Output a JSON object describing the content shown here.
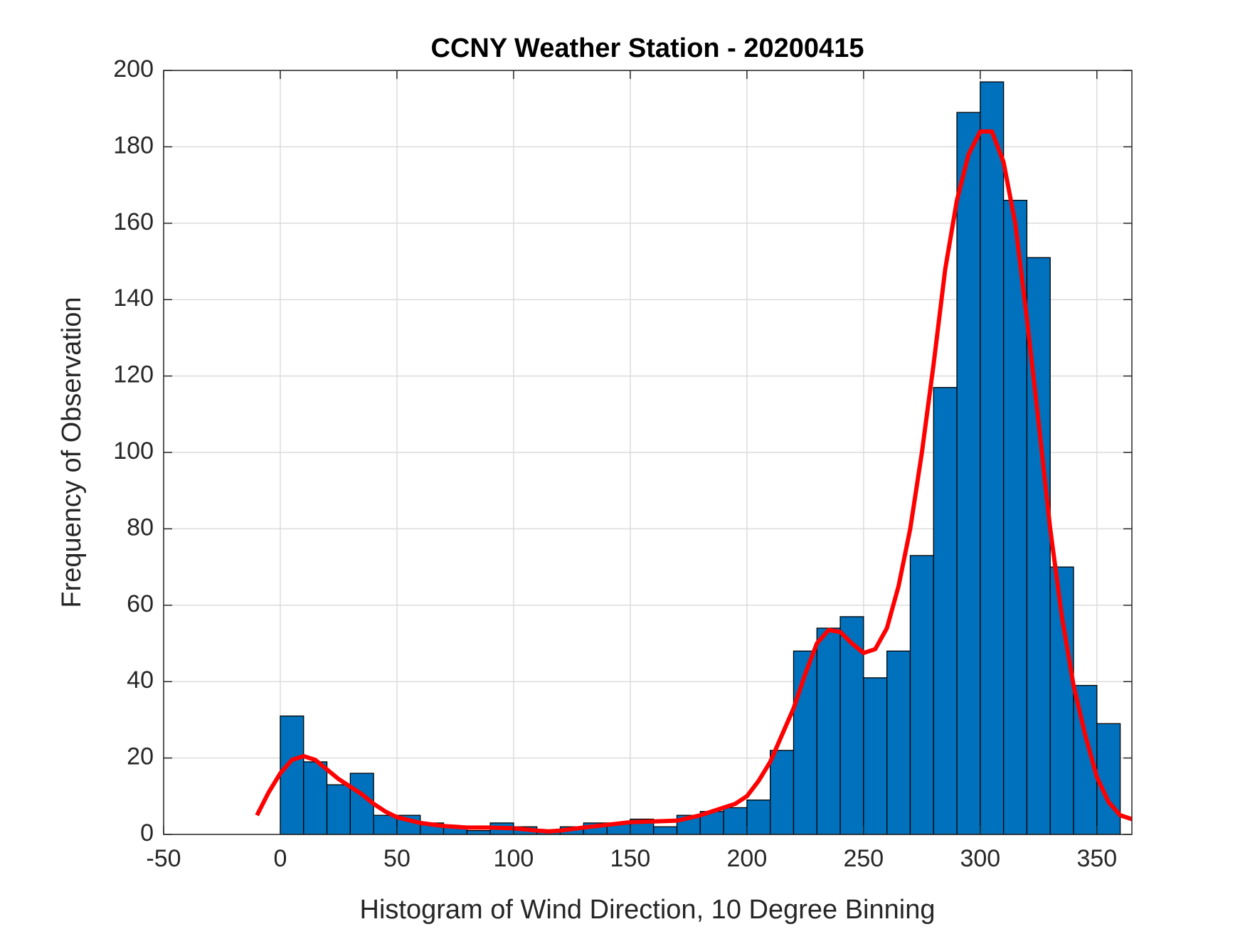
{
  "chart_data": {
    "type": "histogram",
    "title": "CCNY Weather Station - 20200415",
    "xlabel": "Histogram of Wind Direction, 10 Degree Binning",
    "ylabel": "Frequency of Observation",
    "bins": [
      0,
      10,
      20,
      30,
      40,
      50,
      60,
      70,
      80,
      90,
      100,
      110,
      120,
      130,
      140,
      150,
      160,
      170,
      180,
      190,
      200,
      210,
      220,
      230,
      240,
      250,
      260,
      270,
      280,
      290,
      300,
      310,
      320,
      330,
      340,
      350,
      360
    ],
    "values": [
      31,
      19,
      13,
      16,
      5,
      5,
      3,
      2,
      1,
      3,
      2,
      1,
      2,
      3,
      3,
      4,
      2,
      5,
      6,
      7,
      9,
      22,
      48,
      54,
      57,
      41,
      48,
      73,
      117,
      189,
      197,
      166,
      151,
      70,
      39,
      29
    ],
    "color": "#0072bd",
    "curve": {
      "color": "#ff0000",
      "x": [
        -10,
        -5,
        0,
        5,
        10,
        15,
        20,
        25,
        30,
        35,
        40,
        45,
        50,
        60,
        70,
        80,
        90,
        100,
        110,
        115,
        120,
        130,
        140,
        150,
        160,
        170,
        180,
        190,
        195,
        200,
        205,
        210,
        215,
        220,
        225,
        230,
        235,
        240,
        245,
        250,
        255,
        260,
        265,
        270,
        275,
        280,
        285,
        290,
        295,
        300,
        305,
        310,
        315,
        320,
        325,
        330,
        335,
        340,
        345,
        350,
        355,
        360,
        365
      ],
      "values": [
        5,
        11,
        16,
        19.5,
        20.5,
        19.5,
        17,
        14.5,
        12.5,
        10.5,
        8,
        6,
        4.5,
        3,
        2.2,
        1.8,
        1.8,
        1.6,
        1,
        0.8,
        1,
        1.8,
        2.5,
        3.2,
        3.4,
        3.6,
        5,
        7,
        8,
        10,
        14,
        19,
        26,
        33,
        42,
        50,
        53.5,
        53,
        50,
        47.5,
        48.5,
        54,
        65,
        80,
        100,
        123,
        148,
        166,
        178,
        184,
        184,
        176,
        160,
        135,
        108,
        80,
        57,
        39,
        26,
        15,
        8.5,
        5,
        4
      ]
    },
    "xlim": [
      -50,
      365
    ],
    "ylim": [
      0,
      200
    ],
    "xticks": [
      -50,
      0,
      50,
      100,
      150,
      200,
      250,
      300,
      350
    ],
    "yticks": [
      0,
      20,
      40,
      60,
      80,
      100,
      120,
      140,
      160,
      180,
      200
    ],
    "grid": true
  }
}
